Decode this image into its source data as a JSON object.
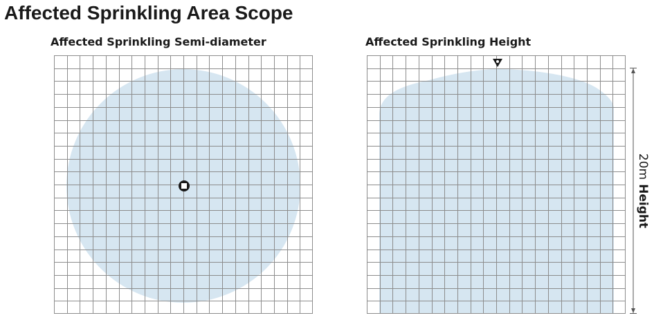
{
  "page": {
    "title": "Affected Sprinkling Area Scope"
  },
  "radius_panel": {
    "title": "Affected Sprinkling Semi-diameter"
  },
  "height_panel": {
    "title": "Affected Sprinkling Height",
    "height_value": "20m",
    "height_word": "Height"
  },
  "colors": {
    "spray_area": "#d6e6f1",
    "grid_line": "#8c8c8c",
    "text": "#1a1a1a",
    "marker": "#1a1a1a"
  },
  "icons": {
    "sprinkler_top_view": "sprinkler-head-icon",
    "sprinkler_side_view": "sprinkler-triangle-icon"
  }
}
